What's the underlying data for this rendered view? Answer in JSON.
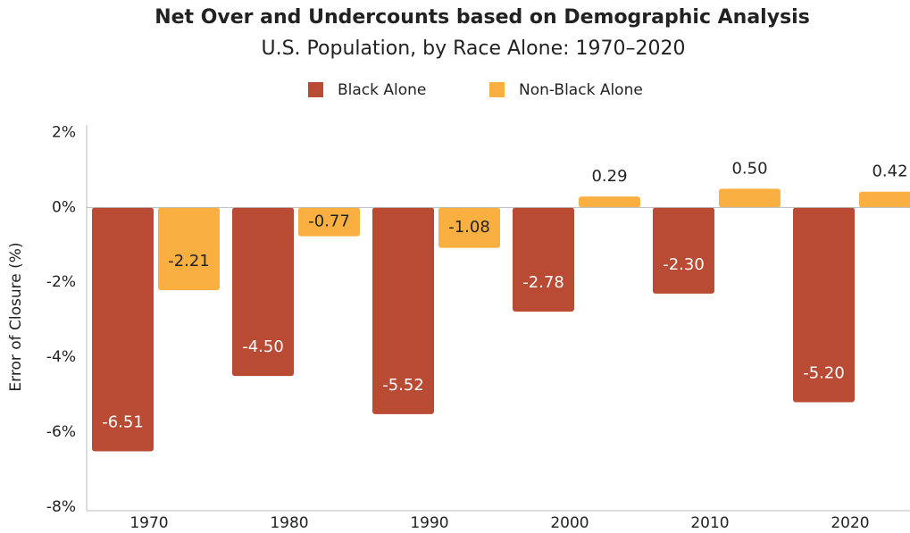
{
  "chart_data": {
    "type": "bar",
    "title": "Net Over and Undercounts based on Demographic Analysis",
    "subtitle": "U.S. Population, by Race Alone: 1970–2020",
    "y_label": "Error of Closure (%)",
    "categories": [
      "1970",
      "1980",
      "1990",
      "2000",
      "2010",
      "2020"
    ],
    "series": [
      {
        "name": "Black Alone",
        "color": "#b94a33",
        "values": [
          -6.51,
          -4.5,
          -5.52,
          -2.78,
          -2.3,
          -5.2
        ],
        "value_labels": [
          "-6.51",
          "-4.50",
          "-5.52",
          "-2.78",
          "-2.30",
          "-5.20"
        ]
      },
      {
        "name": "Non-Black Alone",
        "color": "#f9b040",
        "values": [
          -2.21,
          -0.77,
          -1.08,
          0.29,
          0.5,
          0.42
        ],
        "value_labels": [
          "-2.21",
          "-0.77",
          "-1.08",
          "0.29",
          "0.50",
          "0.42"
        ]
      }
    ],
    "ylim": [
      -8,
      2.2
    ],
    "yticks": [
      {
        "value": 2,
        "label": "2%"
      },
      {
        "value": 0,
        "label": "0%"
      },
      {
        "value": -2,
        "label": "-2%"
      },
      {
        "value": -4,
        "label": "-4%"
      },
      {
        "value": -6,
        "label": "-6%"
      },
      {
        "value": -8,
        "label": "-8%"
      }
    ],
    "legend": "top"
  }
}
